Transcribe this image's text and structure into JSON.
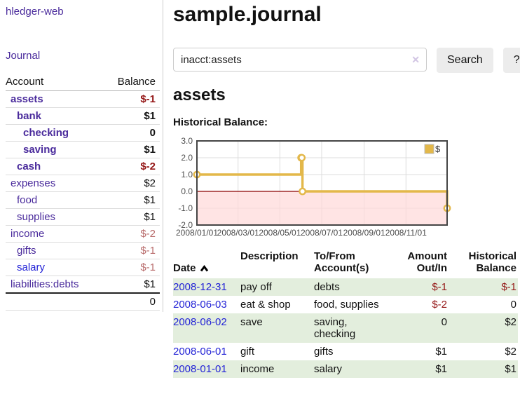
{
  "app": {
    "brand": "hledger-web"
  },
  "colors": {
    "brand_purple": "#4a2b9c",
    "link_blue": "#2323d6",
    "negative_strong": "#941616",
    "negative_soft": "#b86b6b",
    "row_shade_green": "#e3eedd",
    "chart_line_gold": "#e3b84a",
    "chart_negative_fill": "#ffd9d9",
    "chart_zero_line": "#8b0000"
  },
  "sidebar": {
    "journal_link": "Journal",
    "accounts_table": {
      "headers": {
        "account": "Account",
        "balance": "Balance"
      },
      "rows": [
        {
          "name": "assets",
          "depth": 1,
          "bold": true,
          "balance": "$-1",
          "balance_class": "neg"
        },
        {
          "name": "bank",
          "depth": 2,
          "bold": true,
          "balance": "$1",
          "balance_class": ""
        },
        {
          "name": "checking",
          "depth": 3,
          "bold": true,
          "balance": "0",
          "balance_class": ""
        },
        {
          "name": "saving",
          "depth": 3,
          "bold": true,
          "balance": "$1",
          "balance_class": ""
        },
        {
          "name": "cash",
          "depth": 2,
          "bold": true,
          "balance": "$-2",
          "balance_class": "neg"
        },
        {
          "name": "expenses",
          "depth": 1,
          "bold": false,
          "balance": "$2",
          "balance_class": ""
        },
        {
          "name": "food",
          "depth": 2,
          "bold": false,
          "balance": "$1",
          "balance_class": ""
        },
        {
          "name": "supplies",
          "depth": 2,
          "bold": false,
          "balance": "$1",
          "balance_class": ""
        },
        {
          "name": "income",
          "depth": 1,
          "bold": false,
          "balance": "$-2",
          "balance_class": "soft"
        },
        {
          "name": "gifts",
          "depth": 2,
          "bold": false,
          "balance": "$-1",
          "balance_class": "soft"
        },
        {
          "name": "salary",
          "depth": 2,
          "bold": false,
          "balance": "$-1",
          "balance_class": "soft",
          "blue": true
        },
        {
          "name": "liabilities:debts",
          "depth": 1,
          "bold": false,
          "balance": "$1",
          "balance_class": ""
        }
      ],
      "total": "0"
    }
  },
  "main": {
    "title": "sample.journal",
    "search": {
      "value": "inacct:assets",
      "clear_label": "✕",
      "search_button": "Search",
      "help_button": "?"
    },
    "account_heading": "assets",
    "chart_heading": "Historical Balance:"
  },
  "chart_data": {
    "type": "line",
    "title": "Historical Balance:",
    "series": [
      {
        "name": "$",
        "color": "#e3b84a",
        "step": true,
        "points": [
          [
            "2008-01-01",
            1
          ],
          [
            "2008-06-01",
            2
          ],
          [
            "2008-06-02",
            2
          ],
          [
            "2008-06-03",
            0
          ],
          [
            "2008-12-31",
            -1
          ]
        ]
      }
    ],
    "xlim": [
      "2008-01-01",
      "2008-12-31"
    ],
    "ylim": [
      -2,
      3
    ],
    "y_ticks": [
      3.0,
      2.0,
      1.0,
      0.0,
      -1.0,
      -2.0
    ],
    "x_ticks": [
      "2008/01/01",
      "2008/03/01",
      "2008/05/01",
      "2008/07/01",
      "2008/09/01",
      "2008/11/01"
    ],
    "grid": true,
    "legend": {
      "label": "$",
      "swatch_color": "#e3b84a",
      "position": "top-right"
    },
    "negative_fill": "#ffd9d9",
    "zero_line_color": "#8b0000"
  },
  "register_table": {
    "headers": {
      "date": "Date",
      "description": "Description",
      "accounts": "To/From\nAccount(s)",
      "amount": "Amount\nOut/In",
      "balance": "Historical\nBalance"
    },
    "rows": [
      {
        "date": "2008-12-31",
        "description": "pay off",
        "accounts": "debts",
        "amount": "$-1",
        "amount_class": "neg",
        "balance": "$-1",
        "balance_class": "neg",
        "shaded": true
      },
      {
        "date": "2008-06-03",
        "description": "eat & shop",
        "accounts": "food, supplies",
        "amount": "$-2",
        "amount_class": "neg",
        "balance": "0",
        "balance_class": "",
        "shaded": false
      },
      {
        "date": "2008-06-02",
        "description": "save",
        "accounts": "saving,\nchecking",
        "amount": "0",
        "amount_class": "",
        "balance": "$2",
        "balance_class": "",
        "shaded": true
      },
      {
        "date": "2008-06-01",
        "description": "gift",
        "accounts": "gifts",
        "amount": "$1",
        "amount_class": "",
        "balance": "$2",
        "balance_class": "",
        "shaded": false
      },
      {
        "date": "2008-01-01",
        "description": "income",
        "accounts": "salary",
        "amount": "$1",
        "amount_class": "",
        "balance": "$1",
        "balance_class": "",
        "shaded": true
      }
    ]
  }
}
